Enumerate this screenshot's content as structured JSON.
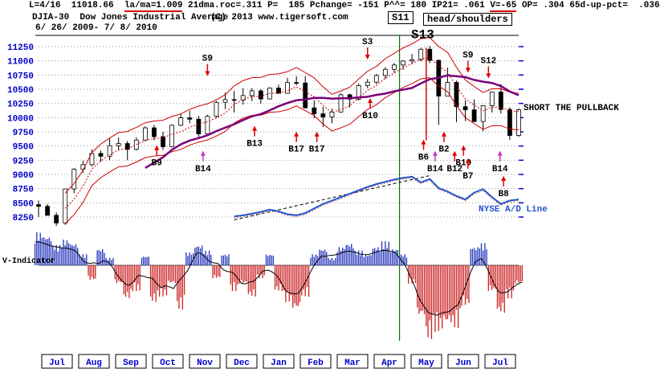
{
  "header": {
    "line1_segments": [
      {
        "text": "L=4/16  11018.66  ",
        "underline": false
      },
      {
        "text": "la/ma=1.009",
        "underline": true
      },
      {
        "text": " 21dma.roc=.311 P=  185 Pchange= -151 P^^= 180 IP21= .061 ",
        "underline": false
      },
      {
        "text": "V=-65",
        "underline": true
      },
      {
        "text": " OP= .304 65d-up-pct=  .036",
        "underline": false
      }
    ],
    "line2_left": "DJIA-30  Dow Jones Industrial Average",
    "line2_center": "(C) 2013 www.tigersoft.com",
    "box1": "S11",
    "box2": "head/shoulders",
    "line3": "6/ 26/ 2009- 7/ 8/ 2010"
  },
  "colors": {
    "axis_label": "#0000cc",
    "candle": "#000000",
    "band": "#cc0000",
    "purple_ma": "#7a007a",
    "ad_line": "#2255cc",
    "pos_bar": "#2233bb",
    "neg_bar": "#cc2222",
    "green_line": "#007700",
    "month_text": "#0000cc",
    "signal_arrow": "#dd0000",
    "magenta_arrow": "#cc33cc"
  },
  "chart_data": {
    "type": "candlestick",
    "title": "DJIA-30 Dow Jones Industrial Average",
    "date_range": "6/26/2009 - 7/8/2010",
    "ylim": [
      8150,
      11350
    ],
    "y_axis_labels": [
      11250,
      11000,
      10750,
      10500,
      10250,
      10000,
      9750,
      9500,
      9250,
      9000,
      8750,
      8500,
      8250
    ],
    "months": [
      "Jul",
      "Aug",
      "Sep",
      "Oct",
      "Nov",
      "Dec",
      "Jan",
      "Feb",
      "Mar",
      "Apr",
      "May",
      "Jun",
      "Jul"
    ],
    "weekly_hlc": [
      [
        8540,
        8250,
        8438
      ],
      [
        8480,
        8280,
        8280
      ],
      [
        8330,
        8090,
        8146
      ],
      [
        8740,
        8110,
        8744
      ],
      [
        9110,
        8670,
        9093
      ],
      [
        9240,
        9030,
        9172
      ],
      [
        9440,
        9140,
        9370
      ],
      [
        9420,
        9230,
        9321
      ],
      [
        9630,
        9250,
        9506
      ],
      [
        9650,
        9420,
        9544
      ],
      [
        9590,
        9250,
        9441
      ],
      [
        9650,
        9420,
        9605
      ],
      [
        9850,
        9580,
        9820
      ],
      [
        9870,
        9600,
        9665
      ],
      [
        9750,
        9430,
        9488
      ],
      [
        9880,
        9480,
        9865
      ],
      [
        10070,
        9850,
        9996
      ],
      [
        10120,
        9900,
        9972
      ],
      [
        10030,
        9650,
        9713
      ],
      [
        10050,
        9680,
        10023
      ],
      [
        10290,
        10000,
        10270
      ],
      [
        10440,
        10150,
        10318
      ],
      [
        10470,
        10090,
        10310
      ],
      [
        10520,
        10230,
        10389
      ],
      [
        10520,
        10290,
        10471
      ],
      [
        10500,
        10250,
        10329
      ],
      [
        10530,
        10320,
        10520
      ],
      [
        10580,
        10420,
        10428
      ],
      [
        10700,
        10430,
        10618
      ],
      [
        10730,
        10570,
        10610
      ],
      [
        10730,
        10160,
        10173
      ],
      [
        10310,
        9990,
        10067
      ],
      [
        10190,
        9835,
        10012
      ],
      [
        10160,
        9900,
        10099
      ],
      [
        10430,
        10090,
        10402
      ],
      [
        10420,
        10180,
        10325
      ],
      [
        10600,
        10300,
        10566
      ],
      [
        10680,
        10520,
        10625
      ],
      [
        10770,
        10590,
        10742
      ],
      [
        10890,
        10680,
        10850
      ],
      [
        10960,
        10790,
        10927
      ],
      [
        11010,
        10840,
        10997
      ],
      [
        11120,
        10940,
        11019
      ],
      [
        11230,
        10990,
        11204
      ],
      [
        11260,
        10960,
        11009
      ],
      [
        11020,
        9870,
        10380
      ],
      [
        10880,
        10440,
        10620
      ],
      [
        10650,
        9919,
        10193
      ],
      [
        10310,
        9940,
        10137
      ],
      [
        10320,
        9920,
        9932
      ],
      [
        10220,
        9760,
        10211
      ],
      [
        10450,
        10090,
        10451
      ],
      [
        10590,
        10070,
        10144
      ],
      [
        10180,
        9610,
        9686
      ],
      [
        10160,
        9660,
        10139
      ]
    ],
    "overlays": {
      "fast_ma_weeks": 4,
      "slow_ma_weeks": 13,
      "band_pct": 0.032
    },
    "ad_line": {
      "label": "NYSE A/D Line",
      "start_week": 22,
      "values": [
        8260,
        8280,
        8310,
        8340,
        8380,
        8350,
        8300,
        8280,
        8320,
        8400,
        8480,
        8540,
        8600,
        8660,
        8720,
        8780,
        8830,
        8870,
        8910,
        8940,
        8960,
        8860,
        8920,
        8760,
        8700,
        8620,
        8560,
        8680,
        8740,
        8600,
        8480,
        8540,
        8560
      ]
    },
    "v_indicator": {
      "label": "V-Indicator",
      "values": [
        0.9,
        0.8,
        0.55,
        0.7,
        0.6,
        0.3,
        -0.4,
        0.45,
        0.2,
        -0.5,
        -0.9,
        -0.7,
        0.25,
        -1.0,
        -0.85,
        -0.5,
        -1.2,
        0.35,
        0.55,
        0.4,
        -0.35,
        0.3,
        -0.7,
        -0.5,
        -0.85,
        -0.35,
        0.3,
        -0.7,
        -1.0,
        -1.2,
        -0.85,
        0.3,
        0.45,
        0.2,
        0.5,
        0.6,
        0.4,
        0.3,
        0.5,
        0.65,
        0.45,
        0.3,
        -0.5,
        -1.4,
        -2.0,
        -1.8,
        -1.6,
        -1.7,
        -1.1,
        0.5,
        0.6,
        -0.7,
        -1.3,
        -0.9,
        -0.5
      ]
    },
    "signals": [
      {
        "label": "S9",
        "week": 19,
        "price": 11000,
        "side": "sell"
      },
      {
        "label": "S3",
        "week": 37,
        "price": 11290,
        "side": "sell"
      },
      {
        "label": "S13",
        "week": 43.2,
        "price": 11400,
        "side": "sell",
        "big": true,
        "arrow": false
      },
      {
        "label": "S9",
        "week": 48.3,
        "price": 11060,
        "side": "sell"
      },
      {
        "label": "S12",
        "week": 50.6,
        "price": 10960,
        "side": "sell"
      },
      {
        "label": "B9",
        "week": 13.3,
        "price": 9160,
        "side": "buy"
      },
      {
        "label": "B14",
        "week": 18.5,
        "price": 9060,
        "side": "buy",
        "color": "#cc33cc"
      },
      {
        "label": "B13",
        "week": 24.3,
        "price": 9500,
        "side": "buy"
      },
      {
        "label": "B17",
        "week": 29,
        "price": 9400,
        "side": "buy"
      },
      {
        "label": "B17",
        "week": 31.3,
        "price": 9400,
        "side": "buy"
      },
      {
        "label": "B10",
        "week": 37.3,
        "price": 9990,
        "side": "buy"
      },
      {
        "label": "B6",
        "week": 43.3,
        "price": 9260,
        "side": "buy"
      },
      {
        "label": "B2",
        "week": 45.6,
        "price": 9400,
        "side": "buy"
      },
      {
        "label": "B14",
        "week": 44.6,
        "price": 9060,
        "side": "buy",
        "color": "#cc33cc"
      },
      {
        "label": "B12",
        "week": 46.8,
        "price": 9060,
        "side": "buy"
      },
      {
        "label": "B19",
        "week": 47.8,
        "price": 9160,
        "side": "buy"
      },
      {
        "label": "B7",
        "week": 48.3,
        "price": 8930,
        "side": "buy"
      },
      {
        "label": "B14",
        "week": 51.9,
        "price": 9060,
        "side": "buy",
        "color": "#cc33cc"
      },
      {
        "label": "B8",
        "week": 52.3,
        "price": 8620,
        "side": "buy"
      }
    ],
    "vlines": [
      {
        "name": "event-line",
        "color": "#007700",
        "week": 40.6,
        "full": true
      },
      {
        "name": "crash-line",
        "color": "#dd0000",
        "week": 43.6,
        "from": 11230,
        "to": 9600
      }
    ],
    "annotations": [
      {
        "text": "SHORT THE PULLBACK",
        "x": 652,
        "y": 137,
        "color": "#000000",
        "size": 11
      },
      {
        "text": "NYSE A/D Line",
        "x": 596,
        "y": 263,
        "color": "#2255cc",
        "size": 11
      },
      {
        "text": "V-Indicator",
        "x": 3,
        "y": 327,
        "color": "#000000",
        "size": 10
      }
    ]
  }
}
